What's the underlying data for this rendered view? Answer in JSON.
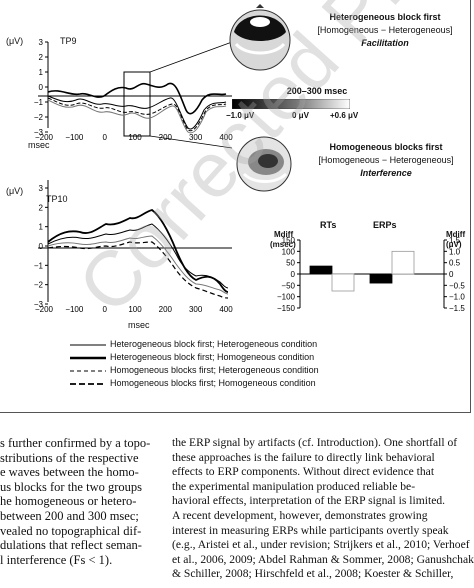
{
  "figure": {
    "panel_tp9": {
      "channel": "TP9",
      "y_unit": "(μV)",
      "y_ticks": [
        "3",
        "2",
        "1",
        "0",
        "−1",
        "−2",
        "−3"
      ],
      "x_ticks": [
        "−200",
        "−100",
        "0",
        "100",
        "200",
        "300",
        "400"
      ],
      "x_label": "msec"
    },
    "panel_tp10": {
      "channel": "TP10",
      "y_unit": "(μV)",
      "y_ticks": [
        "3",
        "2",
        "1",
        "0",
        "−1",
        "−2",
        "−3"
      ],
      "x_ticks": [
        "−200",
        "−100",
        "0",
        "100",
        "200",
        "300",
        "400"
      ],
      "x_label": "msec"
    },
    "topo_top": {
      "title": "Heterogeneous block first",
      "subtitle": "[Homogeneous − Heterogeneous]",
      "effect": "Facilitation"
    },
    "colorbar": {
      "title": "200–300 msec",
      "min_label": "−1.0 μV",
      "mid_label": "0 μV",
      "max_label": "+0.6 μV"
    },
    "topo_bottom": {
      "title": "Homogeneous blocks first",
      "subtitle": "[Homogeneous − Heterogeneous]",
      "effect": "Interference"
    },
    "bar_panel": {
      "left_axis_title": "Mdiff",
      "left_axis_unit": "(msec)",
      "right_axis_title": "Mdiff",
      "right_axis_unit": "(μV)",
      "rt_label": "RTs",
      "erp_label": "ERPs",
      "left_ticks": [
        "150",
        "100",
        "50",
        "0",
        "−50",
        "−100",
        "−150"
      ],
      "right_ticks": [
        "1.5",
        "1.0",
        "0.5",
        "0",
        "−0.5",
        "−1.0",
        "−1.5"
      ]
    },
    "legend": [
      "Heterogeneous block first; Heterogeneous condition",
      "Heterogeneous block first; Homogeneous condition",
      "Homogeneous blocks first; Heterogeneous condition",
      "Homogeneous blocks first; Homogeneous condition"
    ]
  },
  "chart_data": {
    "type": "bar",
    "categories": [
      "RTs",
      "ERPs"
    ],
    "series": [
      {
        "name": "Heterogeneous block first",
        "values": [
          35,
          -0.4
        ]
      },
      {
        "name": "Homogeneous blocks first",
        "values": [
          -75,
          1.0
        ]
      }
    ],
    "ylim_left": [
      -150,
      150
    ],
    "ylim_right": [
      -1.5,
      1.5
    ],
    "colors": [
      "#000000",
      "#ffffff"
    ]
  },
  "text": {
    "left_column": [
      "s further confirmed by a topo-",
      "stributions of the respective",
      "e waves between the homo-",
      "us blocks for the two groups",
      "he homogeneous or hetero-",
      "between 200 and 300 msec;",
      "vealed no topographical dif-",
      "dulations that reflect seman-",
      "l interference (Fs < 1)."
    ],
    "right_column": [
      "the ERP signal by artifacts (cf. Introduction). One shortfall of",
      "these approaches is the failure to directly link behavioral",
      "effects to ERP components. Without direct evidence that",
      "the experimental manipulation produced reliable be-",
      "havioral effects, interpretation of the ERP signal is limited.",
      "A recent development, however, demonstrates growing",
      "interest in measuring ERPs while participants overtly speak",
      "(e.g., Aristei et al., under revision; Strijkers et al., 2010; Verhoef",
      "et al., 2006, 2009; Abdel Rahman & Sommer, 2008; Ganushchak",
      "& Schiller, 2008; Hirschfeld et al., 2008; Koester & Schiller,"
    ],
    "watermark": "Corrected Proof"
  }
}
